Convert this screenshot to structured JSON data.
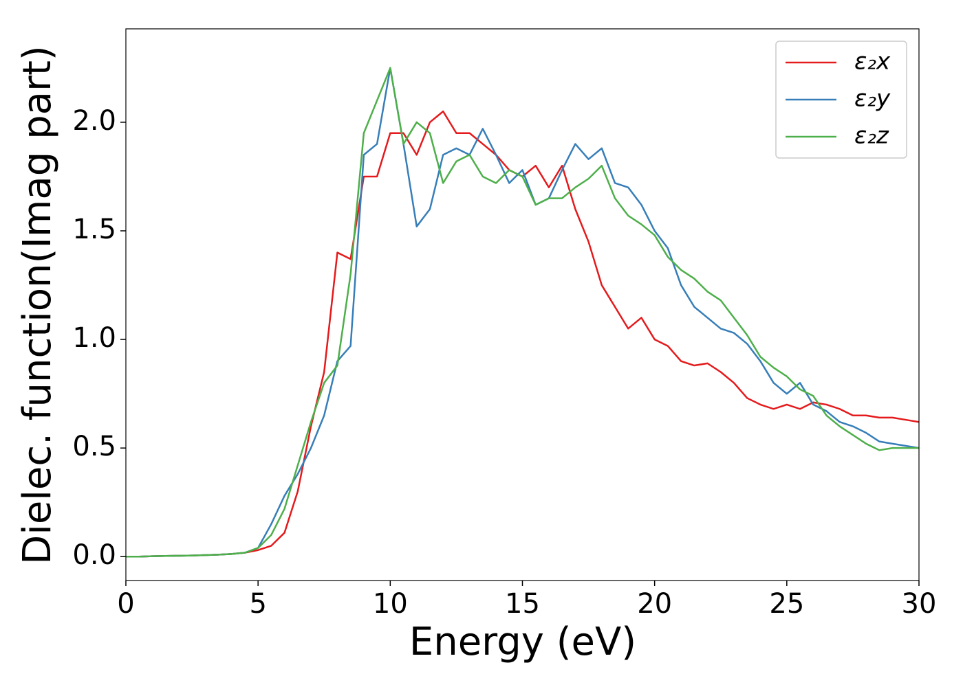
{
  "chart_data": {
    "type": "line",
    "xlabel": "Energy (eV)",
    "ylabel": "Dielec. function(Imag part)",
    "x": [
      0,
      0.5,
      1,
      1.5,
      2,
      2.5,
      3,
      3.5,
      4,
      4.5,
      5,
      5.5,
      6,
      6.5,
      7,
      7.5,
      8,
      8.5,
      9,
      9.5,
      10,
      10.5,
      11,
      11.5,
      12,
      12.5,
      13,
      13.5,
      14,
      14.5,
      15,
      15.5,
      16,
      16.5,
      17,
      17.5,
      18,
      18.5,
      19,
      19.5,
      20,
      20.5,
      21,
      21.5,
      22,
      22.5,
      23,
      23.5,
      24,
      24.5,
      25,
      25.5,
      26,
      26.5,
      27,
      27.5,
      28,
      28.5,
      29,
      29.5,
      30
    ],
    "series": [
      {
        "name": "ε₂x",
        "color": "#e41a1c",
        "values": [
          0,
          0,
          0.002,
          0.003,
          0.004,
          0.005,
          0.007,
          0.009,
          0.012,
          0.018,
          0.03,
          0.05,
          0.11,
          0.3,
          0.6,
          0.85,
          1.4,
          1.37,
          1.75,
          1.75,
          1.95,
          1.95,
          1.85,
          2.0,
          2.05,
          1.95,
          1.95,
          1.9,
          1.85,
          1.78,
          1.75,
          1.8,
          1.7,
          1.8,
          1.6,
          1.45,
          1.25,
          1.15,
          1.05,
          1.1,
          1.0,
          0.97,
          0.9,
          0.88,
          0.89,
          0.85,
          0.8,
          0.73,
          0.7,
          0.68,
          0.7,
          0.68,
          0.71,
          0.7,
          0.68,
          0.65,
          0.65,
          0.64,
          0.64,
          0.63,
          0.62
        ]
      },
      {
        "name": "ε₂y",
        "color": "#377eb8",
        "values": [
          0,
          0,
          0.002,
          0.003,
          0.004,
          0.005,
          0.007,
          0.009,
          0.012,
          0.018,
          0.04,
          0.15,
          0.28,
          0.38,
          0.5,
          0.65,
          0.9,
          0.97,
          1.85,
          1.9,
          2.25,
          1.9,
          1.52,
          1.6,
          1.85,
          1.88,
          1.85,
          1.97,
          1.85,
          1.72,
          1.78,
          1.62,
          1.65,
          1.78,
          1.9,
          1.83,
          1.88,
          1.72,
          1.7,
          1.62,
          1.5,
          1.42,
          1.25,
          1.15,
          1.1,
          1.05,
          1.03,
          0.98,
          0.9,
          0.8,
          0.75,
          0.8,
          0.7,
          0.67,
          0.62,
          0.6,
          0.57,
          0.53,
          0.52,
          0.51,
          0.5
        ]
      },
      {
        "name": "ε₂z",
        "color": "#4daf4a",
        "values": [
          0,
          0,
          0.002,
          0.003,
          0.004,
          0.005,
          0.007,
          0.009,
          0.012,
          0.018,
          0.04,
          0.1,
          0.22,
          0.42,
          0.62,
          0.8,
          0.88,
          1.3,
          1.95,
          2.1,
          2.25,
          1.9,
          2.0,
          1.95,
          1.72,
          1.82,
          1.85,
          1.75,
          1.72,
          1.78,
          1.75,
          1.62,
          1.65,
          1.65,
          1.7,
          1.74,
          1.8,
          1.65,
          1.57,
          1.53,
          1.48,
          1.38,
          1.32,
          1.28,
          1.22,
          1.18,
          1.1,
          1.02,
          0.92,
          0.87,
          0.83,
          0.77,
          0.74,
          0.65,
          0.6,
          0.56,
          0.52,
          0.49,
          0.5,
          0.5,
          0.5
        ]
      }
    ],
    "xlim": [
      0,
      30
    ],
    "xticks": [
      0,
      5,
      10,
      15,
      20,
      25,
      30
    ],
    "ylim": [
      -0.11,
      2.43
    ],
    "yticks": [
      {
        "value": 0,
        "label": "0.0"
      },
      0.5,
      {
        "value": 1,
        "label": "1.0"
      },
      1.5,
      {
        "value": 2,
        "label": "2.0"
      }
    ],
    "legend": "upper right",
    "grid": false
  }
}
